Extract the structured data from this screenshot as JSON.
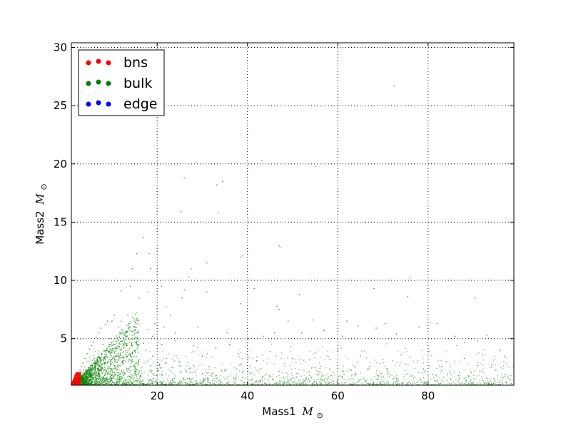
{
  "chart_data": {
    "type": "scatter",
    "title": "",
    "xlabel": "Mass1",
    "ylabel": "Mass2",
    "label_unit": "M",
    "label_unit_sub": "⊙",
    "xlim": [
      1,
      99
    ],
    "ylim": [
      1,
      30.4
    ],
    "xticks": [
      20,
      40,
      60,
      80
    ],
    "yticks": [
      5,
      10,
      15,
      20,
      25,
      30
    ],
    "grid": true,
    "legend": "top-left",
    "series": [
      {
        "name": "bns",
        "color": "#ff0000",
        "points": [
          [
            1.2,
            1.1
          ],
          [
            1.5,
            1.3
          ],
          [
            1.8,
            1.6
          ],
          [
            2.0,
            1.9
          ],
          [
            2.2,
            1.4
          ],
          [
            2.4,
            1.2
          ],
          [
            2.6,
            1.1
          ],
          [
            1.9,
            1.2
          ],
          [
            1.6,
            1.05
          ],
          [
            2.1,
            1.6
          ],
          [
            2.3,
            1.05
          ],
          [
            1.4,
            1.1
          ],
          [
            2.5,
            1.3
          ],
          [
            1.7,
            1.4
          ],
          [
            2.0,
            1.1
          ]
        ]
      },
      {
        "name": "bulk",
        "color": "#008000",
        "points": [
          [
            72.5,
            26.7
          ],
          [
            43.2,
            20.3
          ],
          [
            55.0,
            19.8
          ],
          [
            26.0,
            18.8
          ],
          [
            33.2,
            18.2
          ],
          [
            34.5,
            18.5
          ],
          [
            25.3,
            15.9
          ],
          [
            33.5,
            15.8
          ],
          [
            66.0,
            15.0
          ],
          [
            17.0,
            13.7
          ],
          [
            15.5,
            12.3
          ],
          [
            18.2,
            12.3
          ],
          [
            47.0,
            13.0
          ],
          [
            47.2,
            12.8
          ],
          [
            39.0,
            12.1
          ],
          [
            38.5,
            12.0
          ],
          [
            14.5,
            11.0
          ],
          [
            18.5,
            11.0
          ],
          [
            31.0,
            11.5
          ],
          [
            27.5,
            11.0
          ],
          [
            20.0,
            10.5
          ],
          [
            27.0,
            10.3
          ],
          [
            75.0,
            10.0
          ],
          [
            76.0,
            10.2
          ],
          [
            14.0,
            9.5
          ],
          [
            12.0,
            9.1
          ],
          [
            18.0,
            9.0
          ],
          [
            21.0,
            9.5
          ],
          [
            26.0,
            9.2
          ],
          [
            31.0,
            9.0
          ],
          [
            41.5,
            9.3
          ],
          [
            68.0,
            9.3
          ],
          [
            51.5,
            8.8
          ],
          [
            75.5,
            8.6
          ],
          [
            90.5,
            8.5
          ],
          [
            16.0,
            8.5
          ],
          [
            25.5,
            8.5
          ],
          [
            46.5,
            7.8
          ],
          [
            47.0,
            7.5
          ],
          [
            38.5,
            8.0
          ],
          [
            22.0,
            7.7
          ],
          [
            23.0,
            7.0
          ],
          [
            13.5,
            7.0
          ],
          [
            10.5,
            7.0
          ],
          [
            9.0,
            6.5
          ],
          [
            8.5,
            6.2
          ],
          [
            7.5,
            5.9
          ],
          [
            7.0,
            5.5
          ],
          [
            6.5,
            5.1
          ],
          [
            5.8,
            4.7
          ],
          [
            5.5,
            4.4
          ],
          [
            5.0,
            4.1
          ],
          [
            4.5,
            3.7
          ],
          [
            4.0,
            3.3
          ],
          [
            3.6,
            2.9
          ],
          [
            3.2,
            2.6
          ],
          [
            2.9,
            2.3
          ],
          [
            2.6,
            2.0
          ],
          [
            12.0,
            6.5
          ],
          [
            14.0,
            6.0
          ],
          [
            15.5,
            5.5
          ],
          [
            18.0,
            5.8
          ],
          [
            19.5,
            6.3
          ],
          [
            21.5,
            6.0
          ],
          [
            24.0,
            5.5
          ],
          [
            27.0,
            5.0
          ],
          [
            29.0,
            6.0
          ],
          [
            32.0,
            5.0
          ],
          [
            35.5,
            5.5
          ],
          [
            40.0,
            5.0
          ],
          [
            43.5,
            5.2
          ],
          [
            46.0,
            5.5
          ],
          [
            49.0,
            6.5
          ],
          [
            52.0,
            5.5
          ],
          [
            54.5,
            6.6
          ],
          [
            57.0,
            5.7
          ],
          [
            61.0,
            5.2
          ],
          [
            62.0,
            6.5
          ],
          [
            64.5,
            6.1
          ],
          [
            68.5,
            5.9
          ],
          [
            70.5,
            6.3
          ],
          [
            73.0,
            5.4
          ],
          [
            78.0,
            6.0
          ],
          [
            80.5,
            6.4
          ],
          [
            82.0,
            6.3
          ],
          [
            86.0,
            5.2
          ],
          [
            88.0,
            4.7
          ],
          [
            91.0,
            4.8
          ],
          [
            93.0,
            5.3
          ],
          [
            96.0,
            4.0
          ],
          [
            97.0,
            3.5
          ],
          [
            8.0,
            4.5
          ],
          [
            9.5,
            5.0
          ],
          [
            10.0,
            4.0
          ],
          [
            11.0,
            3.5
          ],
          [
            12.5,
            4.2
          ],
          [
            13.0,
            3.0
          ],
          [
            14.5,
            3.8
          ],
          [
            16.0,
            3.2
          ],
          [
            17.5,
            4.0
          ],
          [
            19.0,
            3.5
          ],
          [
            20.5,
            2.8
          ],
          [
            22.0,
            3.3
          ],
          [
            23.5,
            2.5
          ],
          [
            25.0,
            3.0
          ],
          [
            26.5,
            2.2
          ],
          [
            28.0,
            2.7
          ],
          [
            30.0,
            2.0
          ],
          [
            31.5,
            2.6
          ],
          [
            33.0,
            1.8
          ],
          [
            35.0,
            2.3
          ],
          [
            37.0,
            1.6
          ],
          [
            39.0,
            2.1
          ],
          [
            41.0,
            1.5
          ],
          [
            43.0,
            2.4
          ],
          [
            45.0,
            1.7
          ],
          [
            47.0,
            2.2
          ],
          [
            49.0,
            1.4
          ],
          [
            51.0,
            2.0
          ],
          [
            53.0,
            1.6
          ],
          [
            55.0,
            2.5
          ],
          [
            57.0,
            1.5
          ],
          [
            59.0,
            2.1
          ],
          [
            61.0,
            1.7
          ],
          [
            63.0,
            2.3
          ],
          [
            65.0,
            1.5
          ],
          [
            67.0,
            2.6
          ],
          [
            69.0,
            1.8
          ],
          [
            71.0,
            2.2
          ],
          [
            73.0,
            1.6
          ],
          [
            75.0,
            2.8
          ],
          [
            77.0,
            1.7
          ],
          [
            79.0,
            2.4
          ],
          [
            81.0,
            1.9
          ],
          [
            83.0,
            2.6
          ],
          [
            85.0,
            1.5
          ],
          [
            87.0,
            2.1
          ],
          [
            89.0,
            1.8
          ],
          [
            91.0,
            2.7
          ],
          [
            93.0,
            1.6
          ],
          [
            95.0,
            2.3
          ],
          [
            97.0,
            1.9
          ],
          [
            60.0,
            4.0
          ],
          [
            65.0,
            3.5
          ],
          [
            70.0,
            3.2
          ],
          [
            74.0,
            3.6
          ],
          [
            76.0,
            3.4
          ],
          [
            84.0,
            3.0
          ],
          [
            88.0,
            3.3
          ],
          [
            92.0,
            3.6
          ],
          [
            55.0,
            3.8
          ],
          [
            50.0,
            3.3
          ],
          [
            45.0,
            3.9
          ],
          [
            42.0,
            3.1
          ],
          [
            38.0,
            3.7
          ],
          [
            36.0,
            4.5
          ],
          [
            33.0,
            4.2
          ],
          [
            30.0,
            3.5
          ],
          [
            28.0,
            4.4
          ],
          [
            24.0,
            4.8
          ],
          [
            21.0,
            4.5
          ],
          [
            19.0,
            5.2
          ],
          [
            17.0,
            4.6
          ],
          [
            15.0,
            5.0
          ],
          [
            13.0,
            5.6
          ],
          [
            11.5,
            6.0
          ],
          [
            10.0,
            6.5
          ]
        ]
      },
      {
        "name": "edge",
        "color": "#0000ff",
        "points": []
      }
    ]
  }
}
